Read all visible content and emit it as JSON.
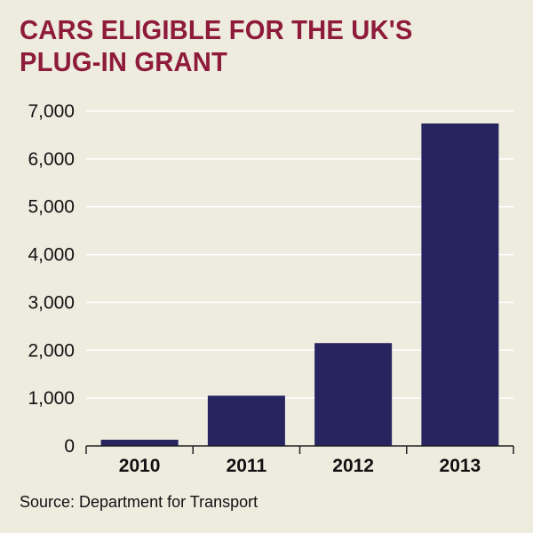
{
  "title_lines": [
    "CARS ELIGIBLE FOR THE UK'S",
    "PLUG-IN GRANT"
  ],
  "source": "Source: Department for Transport",
  "colors": {
    "background": "#eeebdf",
    "title": "#8e1b3a",
    "bar": "#262560",
    "grid": "#ffffff",
    "axis": "#222222"
  },
  "chart_data": {
    "type": "bar",
    "title": "CARS ELIGIBLE FOR THE UK'S PLUG-IN GRANT",
    "categories": [
      "2010",
      "2011",
      "2012",
      "2013"
    ],
    "values": [
      130,
      1050,
      2150,
      6740
    ],
    "ylim": [
      0,
      7000
    ],
    "yticks": [
      0,
      1000,
      2000,
      3000,
      4000,
      5000,
      6000,
      7000
    ],
    "ytick_labels": [
      "0",
      "1,000",
      "2,000",
      "3,000",
      "4,000",
      "5,000",
      "6,000",
      "7,000"
    ],
    "xlabel": "",
    "ylabel": "",
    "grid": true,
    "legend": "none"
  }
}
